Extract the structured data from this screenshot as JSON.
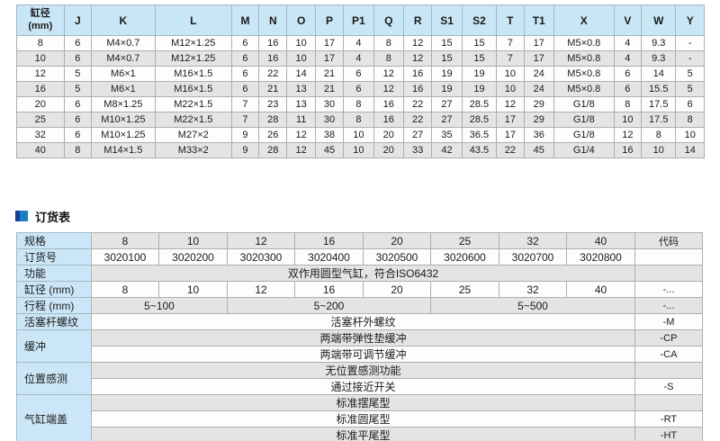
{
  "dimension_table": {
    "headers": [
      "缸径\n(mm)",
      "J",
      "K",
      "L",
      "M",
      "N",
      "O",
      "P",
      "P1",
      "Q",
      "R",
      "S1",
      "S2",
      "T",
      "T1",
      "X",
      "V",
      "W",
      "Y"
    ],
    "rows": [
      [
        "8",
        "6",
        "M4×0.7",
        "M12×1.25",
        "6",
        "16",
        "10",
        "17",
        "4",
        "8",
        "12",
        "15",
        "15",
        "7",
        "17",
        "M5×0.8",
        "4",
        "9.3",
        "-"
      ],
      [
        "10",
        "6",
        "M4×0.7",
        "M12×1.25",
        "6",
        "16",
        "10",
        "17",
        "4",
        "8",
        "12",
        "15",
        "15",
        "7",
        "17",
        "M5×0.8",
        "4",
        "9.3",
        "-"
      ],
      [
        "12",
        "5",
        "M6×1",
        "M16×1.5",
        "6",
        "22",
        "14",
        "21",
        "6",
        "12",
        "16",
        "19",
        "19",
        "10",
        "24",
        "M5×0.8",
        "6",
        "14",
        "5"
      ],
      [
        "16",
        "5",
        "M6×1",
        "M16×1.5",
        "6",
        "21",
        "13",
        "21",
        "6",
        "12",
        "16",
        "19",
        "19",
        "10",
        "24",
        "M5×0.8",
        "6",
        "15.5",
        "5"
      ],
      [
        "20",
        "6",
        "M8×1.25",
        "M22×1.5",
        "7",
        "23",
        "13",
        "30",
        "8",
        "16",
        "22",
        "27",
        "28.5",
        "12",
        "29",
        "G1/8",
        "8",
        "17.5",
        "6"
      ],
      [
        "25",
        "6",
        "M10×1.25",
        "M22×1.5",
        "7",
        "28",
        "11",
        "30",
        "8",
        "16",
        "22",
        "27",
        "28.5",
        "17",
        "29",
        "G1/8",
        "10",
        "17.5",
        "8"
      ],
      [
        "32",
        "6",
        "M10×1.25",
        "M27×2",
        "9",
        "26",
        "12",
        "38",
        "10",
        "20",
        "27",
        "35",
        "36.5",
        "17",
        "36",
        "G1/8",
        "12",
        "8",
        "10"
      ],
      [
        "40",
        "8",
        "M14×1.5",
        "M33×2",
        "9",
        "28",
        "12",
        "45",
        "10",
        "20",
        "33",
        "42",
        "43.5",
        "22",
        "45",
        "G1/4",
        "16",
        "10",
        "14"
      ]
    ]
  },
  "order_section": {
    "title": "订货表"
  },
  "order_table": {
    "rows": [
      {
        "label": "规格",
        "cells": [
          {
            "t": "8"
          },
          {
            "t": "10"
          },
          {
            "t": "12"
          },
          {
            "t": "16"
          },
          {
            "t": "20"
          },
          {
            "t": "25"
          },
          {
            "t": "32"
          },
          {
            "t": "40"
          }
        ],
        "code": "代码"
      },
      {
        "label": "订货号",
        "cells": [
          {
            "t": "3020100"
          },
          {
            "t": "3020200"
          },
          {
            "t": "3020300"
          },
          {
            "t": "3020400"
          },
          {
            "t": "3020500"
          },
          {
            "t": "3020600"
          },
          {
            "t": "3020700"
          },
          {
            "t": "3020800"
          }
        ],
        "code": ""
      },
      {
        "label": "功能",
        "cells": [
          {
            "t": "双作用圆型气缸，符合ISO6432",
            "span": 8
          }
        ],
        "code": ""
      },
      {
        "label": "缸径 (mm)",
        "cells": [
          {
            "t": "8"
          },
          {
            "t": "10"
          },
          {
            "t": "12"
          },
          {
            "t": "16"
          },
          {
            "t": "20"
          },
          {
            "t": "25"
          },
          {
            "t": "32"
          },
          {
            "t": "40"
          }
        ],
        "code": "-..."
      },
      {
        "label": "行程 (mm)",
        "cells": [
          {
            "t": "5~100",
            "span": 2
          },
          {
            "t": "5~200",
            "span": 3
          },
          {
            "t": "5~500",
            "span": 3
          }
        ],
        "code": "-..."
      },
      {
        "label": "活塞杆螺纹",
        "cells": [
          {
            "t": "活塞杆外螺纹",
            "span": 8
          }
        ],
        "code": "-M"
      },
      {
        "label": "缓冲",
        "label_rowspan": 2,
        "cells": [
          {
            "t": "两端带弹性垫缓冲",
            "span": 8
          }
        ],
        "code": "-CP"
      },
      {
        "label": null,
        "cells": [
          {
            "t": "两端带可调节缓冲",
            "span": 8
          }
        ],
        "code": "-CA"
      },
      {
        "label": "位置感测",
        "label_rowspan": 2,
        "cells": [
          {
            "t": "无位置感测功能",
            "span": 8
          }
        ],
        "code": ""
      },
      {
        "label": null,
        "cells": [
          {
            "t": "通过接近开关",
            "span": 8
          }
        ],
        "code": "-S"
      },
      {
        "label": "气缸端盖",
        "label_rowspan": 3,
        "cells": [
          {
            "t": "标准摆尾型",
            "span": 8
          }
        ],
        "code": ""
      },
      {
        "label": null,
        "cells": [
          {
            "t": "标准圆尾型",
            "span": 8
          }
        ],
        "code": "-RT"
      },
      {
        "label": null,
        "cells": [
          {
            "t": "标准平尾型",
            "span": 8
          }
        ],
        "code": "-HT"
      }
    ]
  }
}
